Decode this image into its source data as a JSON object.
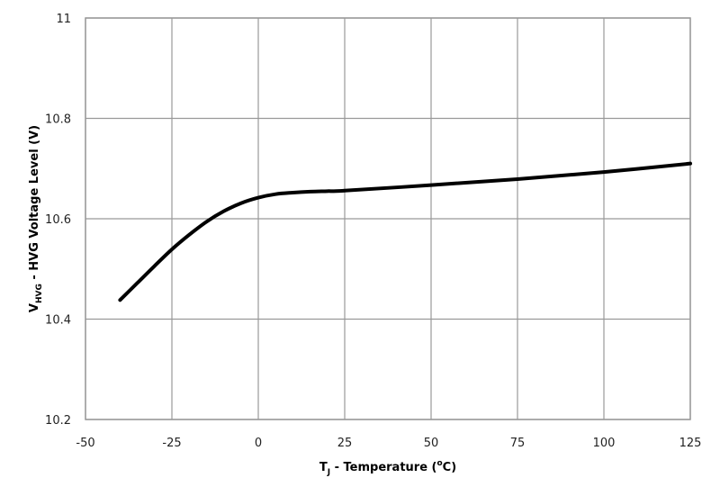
{
  "chart_data": {
    "type": "line",
    "title": "",
    "xlabel": "T_J - Temperature (°C)",
    "xlabel_parts": {
      "main": "T",
      "sub": "J",
      "rest": " - Temperature (",
      "sup": "o",
      "end": "C)"
    },
    "ylabel": "V_HVG - HVG Voltage Level (V)",
    "ylabel_parts": {
      "main": "V",
      "sub": "HVG",
      "rest": " - HVG Voltage Level (V)"
    },
    "xlim": [
      -50,
      125
    ],
    "ylim": [
      10.2,
      11
    ],
    "xticks": [
      "-50",
      "-25",
      "0",
      "25",
      "50",
      "75",
      "100",
      "125"
    ],
    "yticks": [
      "10.2",
      "10.4",
      "10.6",
      "10.8",
      "11"
    ],
    "grid": true,
    "legend": null,
    "series": [
      {
        "name": "VHVG",
        "color": "#000000",
        "x": [
          -40,
          -35,
          -30,
          -25,
          -20,
          -15,
          -10,
          -5,
          0,
          5,
          10,
          15,
          20,
          25,
          50,
          75,
          100,
          125
        ],
        "y": [
          10.438,
          10.472,
          10.506,
          10.539,
          10.568,
          10.594,
          10.615,
          10.631,
          10.642,
          10.649,
          10.652,
          10.654,
          10.655,
          10.656,
          10.667,
          10.679,
          10.693,
          10.71
        ]
      }
    ]
  }
}
